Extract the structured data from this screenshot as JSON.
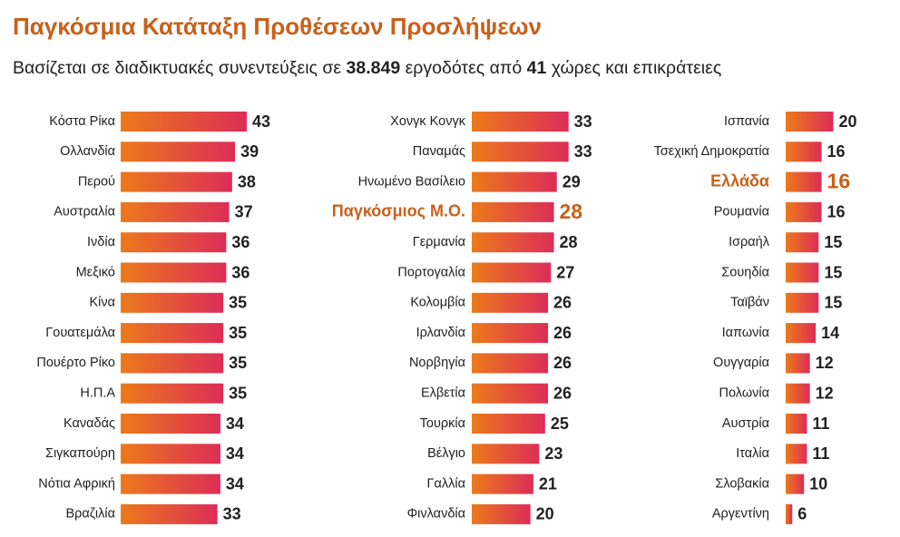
{
  "title": "Παγκόσμια Κατάταξη Προθέσεων Προσλήψεων",
  "subtitle": [
    "Βασίζεται σε διαδικτυακές συνεντεύξεις σε",
    "38.849",
    "εργοδότες από",
    "41",
    "χώρες και επικράτειες"
  ],
  "chart_data": [
    {
      "type": "bar",
      "orientation": "horizontal",
      "gradient": [
        "#ec7a1a",
        "#dc2d58"
      ],
      "highlight_color": "#c8601a",
      "xlim": [
        0,
        46.4
      ],
      "categories": [
        "Κόστα Ρίκα",
        "Ολλανδία",
        "Περού",
        "Αυστραλία",
        "Ινδία",
        "Μεξικό",
        "Κίνα",
        "Γουατεμάλα",
        "Πουέρτο Ρίκο",
        "Η.Π.Α",
        "Καναδάς",
        "Σιγκαπούρη",
        "Νότια Αφρική",
        "Βραζιλία"
      ],
      "values": [
        43,
        39,
        38,
        37,
        36,
        36,
        35,
        35,
        35,
        35,
        34,
        34,
        34,
        33
      ],
      "highlight": []
    },
    {
      "type": "bar",
      "orientation": "horizontal",
      "gradient": [
        "#ec7a1a",
        "#dc2d58"
      ],
      "highlight_color": "#c8601a",
      "xlim": [
        0,
        46.4
      ],
      "categories": [
        "Χονγκ Κονγκ",
        "Παναμάς",
        "Ηνωμένο Βασίλειο",
        "Παγκόσμιος Μ.Ο.",
        "Γερμανία",
        "Πορτογαλία",
        "Κολομβία",
        "Ιρλανδία",
        "Νορβηγία",
        "Ελβετία",
        "Τουρκία",
        "Βέλγιο",
        "Γαλλία",
        "Φινλανδία"
      ],
      "values": [
        33,
        33,
        29,
        28,
        28,
        27,
        26,
        26,
        26,
        26,
        25,
        23,
        21,
        20
      ],
      "highlight": [
        3
      ]
    },
    {
      "type": "bar",
      "orientation": "horizontal",
      "gradient": [
        "#ec7a1a",
        "#dc2d58"
      ],
      "highlight_color": "#c8601a",
      "xlim": [
        3.75,
        50.2
      ],
      "categories": [
        "Ισπανία",
        "Τσεχική Δημοκρατία",
        "Ελλάδα",
        "Ρουμανία",
        "Ισραήλ",
        "Σουηδία",
        "Ταϊβάν",
        "Ιαπωνία",
        "Ουγγαρία",
        "Πολωνία",
        "Αυστρία",
        "Ιταλία",
        "Σλοβακία",
        "Αργεντίνη"
      ],
      "values": [
        20,
        16,
        16,
        16,
        15,
        15,
        15,
        14,
        12,
        12,
        11,
        11,
        10,
        6
      ],
      "highlight": [
        2
      ]
    }
  ]
}
